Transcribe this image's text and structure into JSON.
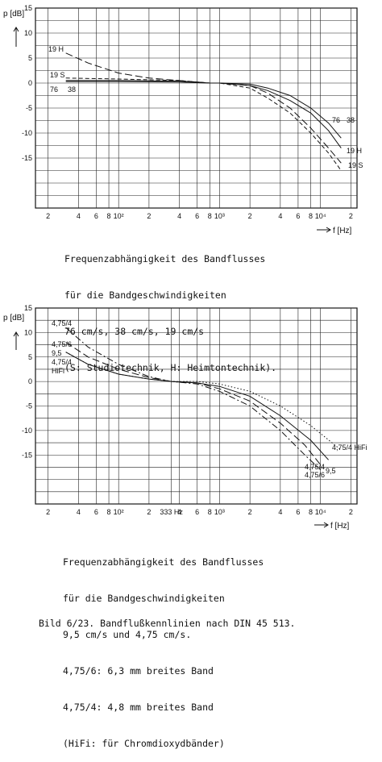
{
  "chart_data": [
    {
      "type": "line",
      "ylabel": "p [dB]",
      "xlabel": "f [Hz]",
      "x_scale": "log",
      "xlim": [
        15,
        23000
      ],
      "ylim": [
        -25,
        15
      ],
      "yticks": [
        15,
        10,
        5,
        0,
        -5,
        -10,
        -15
      ],
      "ytick_labels": [
        "15",
        "10",
        "5",
        "0",
        "-5",
        "-10",
        "-15"
      ],
      "xtick_labels": [
        "2",
        "4",
        "6",
        "8",
        "10²",
        "2",
        "4",
        "6",
        "8",
        "10³",
        "2",
        "4",
        "6",
        "8",
        "10⁴",
        "2"
      ],
      "xtick_values": [
        20,
        40,
        60,
        80,
        100,
        200,
        400,
        600,
        800,
        1000,
        2000,
        4000,
        6000,
        8000,
        10000,
        20000
      ],
      "grid": true,
      "series": [
        {
          "name": "19 H",
          "dash": "long-dash",
          "x": [
            30,
            50,
            100,
            200,
            400,
            800,
            1000,
            2000,
            3000,
            5000,
            8000,
            12000,
            16000
          ],
          "y": [
            6,
            4,
            2,
            1,
            0.5,
            0,
            0,
            -0.5,
            -2,
            -5,
            -9,
            -13,
            -16
          ]
        },
        {
          "name": "19 S",
          "dash": "short-dash",
          "x": [
            30,
            100,
            400,
            800,
            1000,
            2000,
            3000,
            5000,
            8000,
            12000,
            16000
          ],
          "y": [
            1,
            0.8,
            0.5,
            0,
            0,
            -1,
            -3,
            -6,
            -10,
            -14,
            -17.5
          ]
        },
        {
          "name": "76",
          "dash": "solid",
          "x": [
            30,
            100,
            400,
            800,
            1000,
            2000,
            3000,
            5000,
            8000,
            12000,
            16000
          ],
          "y": [
            0.3,
            0.3,
            0.2,
            0,
            0,
            -0.2,
            -1,
            -2.5,
            -5,
            -8,
            -11
          ]
        },
        {
          "name": "38",
          "dash": "solid",
          "x": [
            30,
            100,
            400,
            800,
            1000,
            2000,
            3000,
            5000,
            8000,
            12000,
            16000
          ],
          "y": [
            0.5,
            0.5,
            0.4,
            0,
            0,
            -0.5,
            -1.5,
            -3.5,
            -6,
            -9.5,
            -13
          ]
        }
      ],
      "annotations": [
        "19 H",
        "19 S",
        "76",
        "38",
        "76",
        "38",
        "19 H",
        "19 S"
      ]
    },
    {
      "type": "line",
      "ylabel": "p [dB]",
      "xlabel": "f [Hz]",
      "x_scale": "log",
      "xlim": [
        15,
        23000
      ],
      "ylim": [
        -25,
        15
      ],
      "yticks": [
        15,
        10,
        5,
        0,
        -5,
        -10,
        -15
      ],
      "ytick_labels": [
        "15",
        "10",
        "5",
        "0",
        "-5",
        "-10",
        "-15"
      ],
      "xtick_labels": [
        "2",
        "4",
        "6",
        "8",
        "10²",
        "2",
        "333 Hz",
        "4",
        "6",
        "8",
        "10³",
        "2",
        "4",
        "6",
        "8",
        "10⁴",
        "2"
      ],
      "xtick_values": [
        20,
        40,
        60,
        80,
        100,
        200,
        333,
        400,
        600,
        800,
        1000,
        2000,
        4000,
        6000,
        8000,
        10000,
        20000
      ],
      "grid": true,
      "series": [
        {
          "name": "4,75/4",
          "dash": "dash-dot",
          "x": [
            30,
            50,
            100,
            200,
            333,
            600,
            1000,
            2000,
            4000,
            7000,
            10000
          ],
          "y": [
            11,
            7,
            3.5,
            1,
            0,
            -0.5,
            -2,
            -5,
            -10,
            -15,
            -18
          ]
        },
        {
          "name": "4,75/6",
          "dash": "long-dash",
          "x": [
            30,
            50,
            100,
            200,
            333,
            600,
            1000,
            2000,
            4000,
            7000,
            10000
          ],
          "y": [
            8,
            5,
            2.5,
            0.8,
            0,
            -0.3,
            -1.5,
            -4,
            -8.5,
            -13,
            -17
          ]
        },
        {
          "name": "9,5",
          "dash": "solid",
          "x": [
            30,
            50,
            100,
            200,
            333,
            600,
            1000,
            2000,
            4000,
            8000,
            12000
          ],
          "y": [
            6,
            3.5,
            1.5,
            0.5,
            0,
            -0.3,
            -1,
            -3,
            -7,
            -12,
            -16
          ]
        },
        {
          "name": "4,75/4 HiFi",
          "dash": "dotted",
          "x": [
            30,
            50,
            100,
            200,
            333,
            600,
            1000,
            2000,
            4000,
            8000,
            16000
          ],
          "y": [
            6,
            3.5,
            1.5,
            0.5,
            0,
            0,
            -0.5,
            -2,
            -5,
            -9,
            -14
          ]
        }
      ],
      "annotations": [
        "4,75/4",
        "4,75/6",
        "9,5",
        "4,75/4",
        "HiFi",
        "4,75/4 HiFi",
        "4,75/4",
        "4,75/6",
        "9,5"
      ]
    }
  ],
  "caption1": {
    "line1": "Frequenzabhängigkeit des Bandflusses",
    "line2": "für die Bandgeschwindigkeiten",
    "line3": "76 cm/s, 38 cm/s, 19 cm/s",
    "line4": "(S: Studiotechnik, H: Heimtontechnik)."
  },
  "caption2": {
    "line1": "Frequenzabhängigkeit des Bandflusses",
    "line2": "für die Bandgeschwindigkeiten",
    "line3": "9,5 cm/s und 4,75 cm/s.",
    "line4": "4,75/6: 6,3 mm breites Band",
    "line5": "4,75/4: 4,8 mm breites Band",
    "line6": "(HiFi: für Chromdioxydbänder)"
  },
  "figure_caption": "Bild 6/23. Bandflußkennlinien nach DIN 45 513."
}
